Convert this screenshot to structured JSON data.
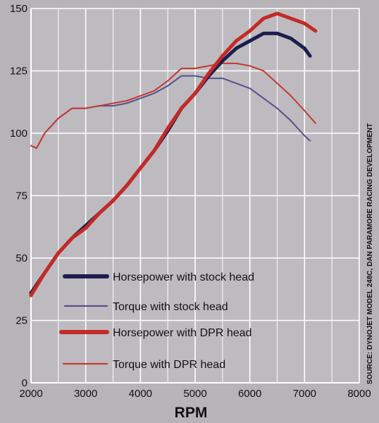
{
  "chart_data": {
    "type": "line",
    "title": "",
    "xlabel": "RPM",
    "ylabel": "",
    "xlim": [
      2000,
      8000
    ],
    "ylim": [
      0,
      150
    ],
    "xticks": [
      2000,
      3000,
      4000,
      5000,
      6000,
      7000,
      8000
    ],
    "yticks": [
      0,
      25,
      50,
      75,
      100,
      125,
      150
    ],
    "grid": true,
    "legend_position": "bottom-center",
    "source": "SOURCE: DYNOJET MODEL 248C, DAN PARAMORE RACING DEVELOPMENT",
    "series": [
      {
        "name": "Horsepower with stock head",
        "color": "#1c1e4e",
        "weight": "thick",
        "points": [
          [
            2000,
            36
          ],
          [
            2250,
            44
          ],
          [
            2500,
            52
          ],
          [
            2750,
            58
          ],
          [
            3000,
            63
          ],
          [
            3250,
            68
          ],
          [
            3500,
            73
          ],
          [
            3750,
            79
          ],
          [
            4000,
            86
          ],
          [
            4250,
            93
          ],
          [
            4500,
            101
          ],
          [
            4750,
            110
          ],
          [
            5000,
            116
          ],
          [
            5250,
            123
          ],
          [
            5500,
            129
          ],
          [
            5750,
            134
          ],
          [
            6000,
            137
          ],
          [
            6250,
            140
          ],
          [
            6500,
            140
          ],
          [
            6750,
            138
          ],
          [
            7000,
            134
          ],
          [
            7100,
            131
          ]
        ]
      },
      {
        "name": "Torque with stock head",
        "color": "#55508e",
        "weight": "thin",
        "points": [
          [
            2000,
            95
          ],
          [
            2100,
            94
          ],
          [
            2250,
            100
          ],
          [
            2500,
            106
          ],
          [
            2750,
            110
          ],
          [
            3000,
            110
          ],
          [
            3250,
            111
          ],
          [
            3500,
            111
          ],
          [
            3750,
            112
          ],
          [
            4000,
            114
          ],
          [
            4250,
            116
          ],
          [
            4500,
            119
          ],
          [
            4750,
            123
          ],
          [
            5000,
            123
          ],
          [
            5250,
            122
          ],
          [
            5500,
            122
          ],
          [
            5750,
            120
          ],
          [
            6000,
            118
          ],
          [
            6250,
            114
          ],
          [
            6500,
            110
          ],
          [
            6750,
            105
          ],
          [
            7000,
            99
          ],
          [
            7100,
            97
          ]
        ]
      },
      {
        "name": "Horsepower with DPR head",
        "color": "#c42a26",
        "weight": "thick",
        "points": [
          [
            2000,
            35
          ],
          [
            2250,
            44
          ],
          [
            2500,
            52
          ],
          [
            2750,
            58
          ],
          [
            3000,
            62
          ],
          [
            3250,
            68
          ],
          [
            3500,
            73
          ],
          [
            3750,
            79
          ],
          [
            4000,
            86
          ],
          [
            4250,
            93
          ],
          [
            4500,
            102
          ],
          [
            4750,
            110
          ],
          [
            5000,
            116
          ],
          [
            5250,
            124
          ],
          [
            5500,
            131
          ],
          [
            5750,
            137
          ],
          [
            6000,
            141
          ],
          [
            6250,
            146
          ],
          [
            6500,
            148
          ],
          [
            6750,
            146
          ],
          [
            7000,
            144
          ],
          [
            7200,
            141
          ]
        ]
      },
      {
        "name": "Torque with DPR head",
        "color": "#c53a2e",
        "weight": "thin",
        "points": [
          [
            2000,
            95
          ],
          [
            2100,
            94
          ],
          [
            2250,
            100
          ],
          [
            2500,
            106
          ],
          [
            2750,
            110
          ],
          [
            3000,
            110
          ],
          [
            3250,
            111
          ],
          [
            3500,
            112
          ],
          [
            3750,
            113
          ],
          [
            4000,
            115
          ],
          [
            4250,
            117
          ],
          [
            4500,
            121
          ],
          [
            4750,
            126
          ],
          [
            5000,
            126
          ],
          [
            5250,
            127
          ],
          [
            5500,
            128
          ],
          [
            5750,
            128
          ],
          [
            6000,
            127
          ],
          [
            6250,
            125
          ],
          [
            6500,
            120
          ],
          [
            6750,
            115
          ],
          [
            7000,
            109
          ],
          [
            7200,
            104
          ]
        ]
      }
    ]
  }
}
